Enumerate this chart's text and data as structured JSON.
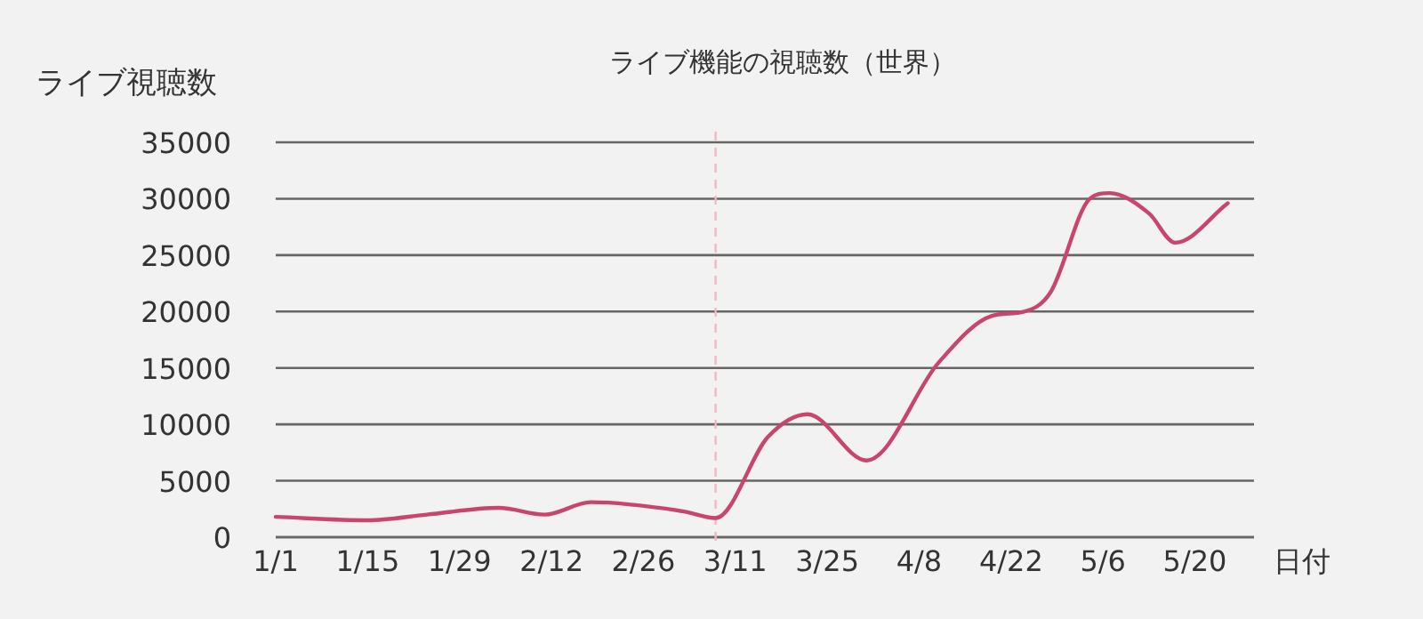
{
  "chart_data": {
    "type": "line",
    "title": "ライブ機能の視聴数（世界）",
    "xlabel": "日付",
    "ylabel": "ライブ視聴数",
    "x": [
      "--01-01",
      "--01-15",
      "--01-24",
      "--02-04",
      "--02-11",
      "--02-18",
      "--03-03",
      "--03-08",
      "--03-16",
      "--03-22",
      "--03-31",
      "--04-11",
      "--04-19",
      "--04-24",
      "--04-28",
      "--05-04",
      "--05-07",
      "--05-13",
      "--05-17",
      "--05-25"
    ],
    "values": [
      1800,
      1500,
      2000,
      2600,
      2000,
      3100,
      2300,
      1700,
      8900,
      10900,
      6800,
      15500,
      19600,
      20000,
      21700,
      30000,
      30500,
      28700,
      26100,
      29600
    ],
    "color": "#c8456e",
    "marker": "none",
    "line_style": "solid",
    "grid": "y",
    "xlim": [
      "--01-01",
      "--05-29"
    ],
    "xticks": [
      {
        "value": "--01-01",
        "label": "1/1"
      },
      {
        "value": "--01-15",
        "label": "1/15"
      },
      {
        "value": "--01-29",
        "label": "1/29"
      },
      {
        "value": "--02-12",
        "label": "2/12"
      },
      {
        "value": "--02-26",
        "label": "2/26"
      },
      {
        "value": "--03-11",
        "label": "3/11"
      },
      {
        "value": "--03-25",
        "label": "3/25"
      },
      {
        "value": "--04-08",
        "label": "4/8"
      },
      {
        "value": "--04-22",
        "label": "4/22"
      },
      {
        "value": "--05-06",
        "label": "5/6"
      },
      {
        "value": "--05-20",
        "label": "5/20"
      }
    ],
    "ylim": [
      0,
      35000
    ],
    "yticks": [
      0,
      5000,
      10000,
      15000,
      20000,
      25000,
      30000,
      35000
    ],
    "ref_lines": [
      {
        "axis": "x",
        "value": "--03-08",
        "color": "#f2b8bf",
        "line_style": "dashed"
      }
    ]
  }
}
